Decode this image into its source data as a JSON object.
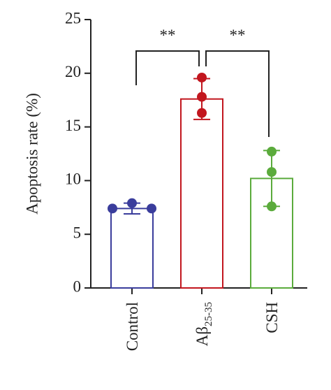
{
  "chart_data": {
    "type": "bar",
    "y_label": "Apoptosis rate (%)",
    "categories": [
      "Control",
      "Aβ",
      "CSH"
    ],
    "category_subscripts": [
      null,
      "25-35",
      null
    ],
    "values": [
      7.4,
      17.6,
      10.2
    ],
    "errors": [
      0.5,
      1.9,
      2.6
    ],
    "points": [
      [
        7.4,
        7.9,
        7.4
      ],
      [
        19.6,
        17.8,
        16.3
      ],
      [
        12.7,
        10.8,
        7.6
      ]
    ],
    "colors": [
      "#3a3d9c",
      "#c2161e",
      "#5bab3c"
    ],
    "ylim": [
      0,
      25
    ],
    "yticks": [
      0,
      5,
      10,
      15,
      20,
      25
    ],
    "comparisons": [
      {
        "pair": [
          0,
          1
        ],
        "label": "**"
      },
      {
        "pair": [
          1,
          2
        ],
        "label": "**"
      }
    ]
  }
}
